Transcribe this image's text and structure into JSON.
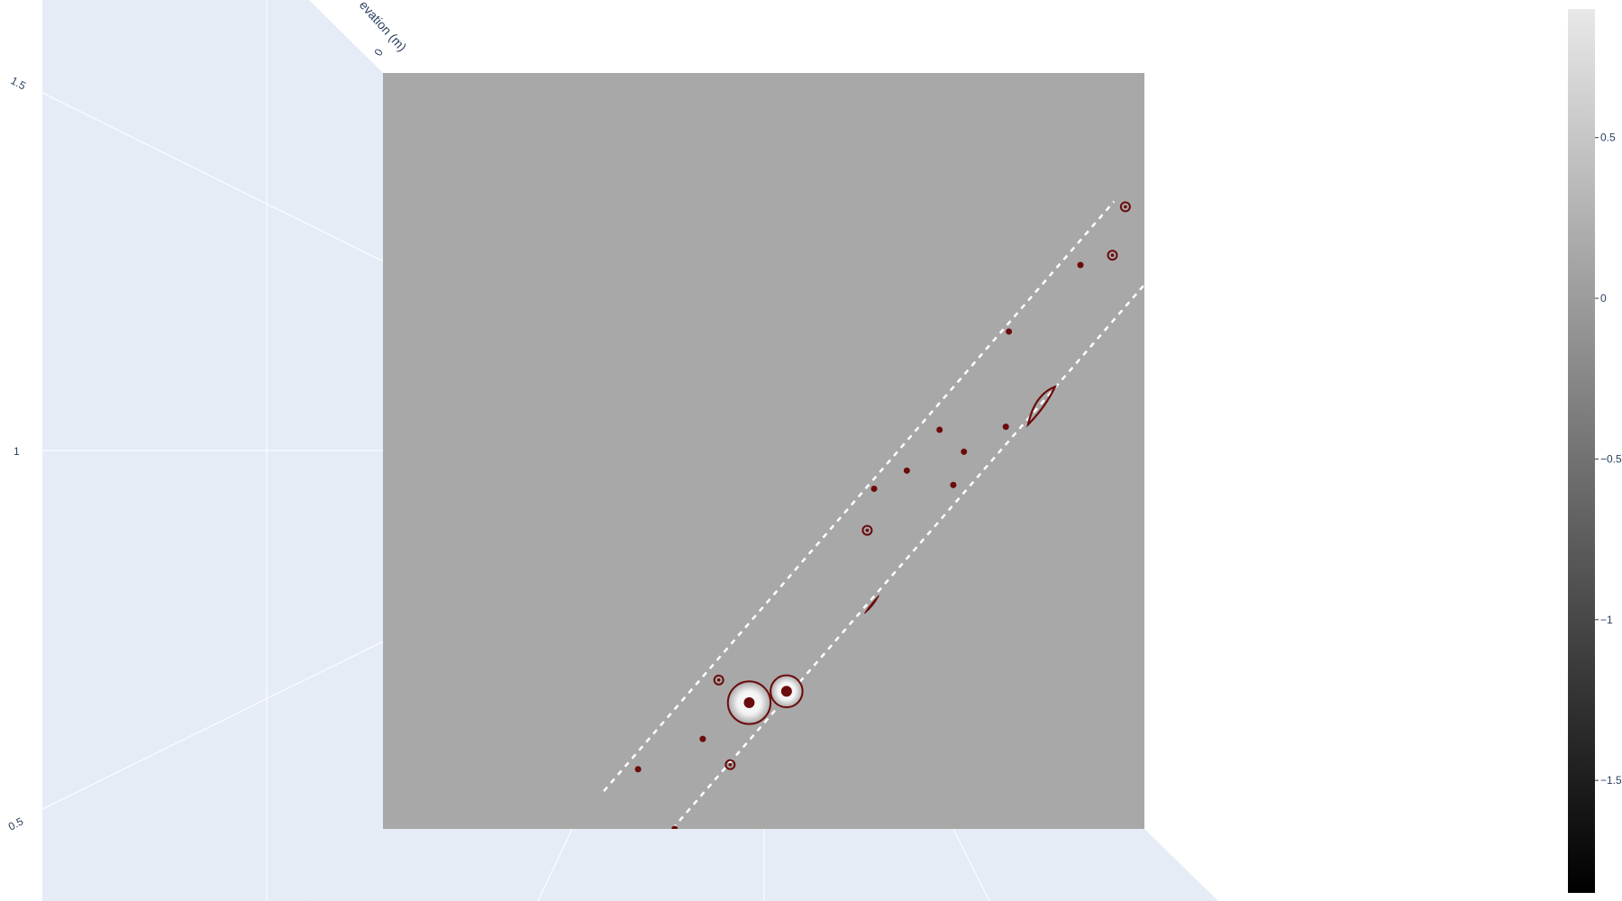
{
  "chart_data": {
    "type": "heatmap",
    "title": "",
    "axis_title": "Elevation (m)",
    "axis_title_visible": "evation (m)",
    "z_axis_ticks": [
      "1.5",
      "1",
      "0.5"
    ],
    "corner_tick": "0",
    "colorscale": {
      "name": "greys",
      "range": [
        -1.85,
        0.9
      ],
      "ticks": [
        "0.5",
        "0",
        "−0.5",
        "−1",
        "−1.5"
      ],
      "tick_values": [
        0.5,
        0,
        -0.5,
        -1,
        -1.5
      ]
    },
    "colors": {
      "surface": "#a8a8a8",
      "pane": "#e5ecf6",
      "contour": "#6b0b0b",
      "corridor": "#ffffff"
    },
    "corridor_lines": [
      {
        "name": "upper-edge",
        "from": [
          0.29,
          0.05
        ],
        "to": [
          0.96,
          0.83
        ]
      },
      {
        "name": "lower-edge",
        "from": [
          0.38,
          0.0
        ],
        "to": [
          1.0,
          0.72
        ]
      }
    ],
    "features": [
      {
        "kind": "dot",
        "x": 0.335,
        "y": 0.079
      },
      {
        "kind": "dot",
        "x": 0.42,
        "y": 0.119
      },
      {
        "kind": "dot",
        "x": 0.645,
        "y": 0.45
      },
      {
        "kind": "dot",
        "x": 0.688,
        "y": 0.474
      },
      {
        "kind": "dot",
        "x": 0.731,
        "y": 0.528
      },
      {
        "kind": "dot",
        "x": 0.749,
        "y": 0.455
      },
      {
        "kind": "dot",
        "x": 0.763,
        "y": 0.499
      },
      {
        "kind": "dot",
        "x": 0.818,
        "y": 0.532
      },
      {
        "kind": "dot",
        "x": 0.822,
        "y": 0.658
      },
      {
        "kind": "dot",
        "x": 0.916,
        "y": 0.746
      },
      {
        "kind": "dot",
        "x": 0.383,
        "y": 0.0
      },
      {
        "kind": "ring",
        "x": 0.441,
        "y": 0.197
      },
      {
        "kind": "ring",
        "x": 0.456,
        "y": 0.085
      },
      {
        "kind": "ring",
        "x": 0.636,
        "y": 0.395
      },
      {
        "kind": "ring",
        "x": 0.958,
        "y": 0.759
      },
      {
        "kind": "ring",
        "x": 0.975,
        "y": 0.823
      },
      {
        "kind": "crater",
        "x": 0.481,
        "y": 0.167,
        "r": 0.028
      },
      {
        "kind": "crater",
        "x": 0.53,
        "y": 0.182,
        "r": 0.021
      },
      {
        "kind": "sliver",
        "x": 0.642,
        "y": 0.297
      },
      {
        "kind": "lens",
        "x": 0.865,
        "y": 0.56
      }
    ]
  }
}
